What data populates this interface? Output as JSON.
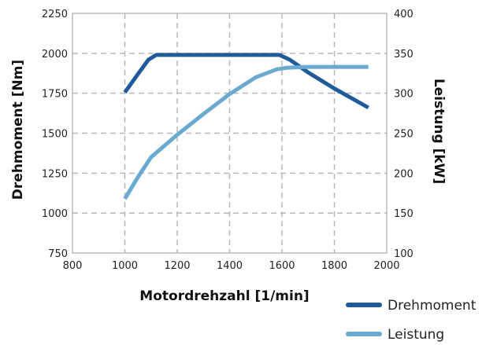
{
  "chart_data": {
    "type": "line",
    "xlabel": "Motordrehzahl [1/min]",
    "ylabel": "Drehmoment [Nm]",
    "y2label": "Leistung [kW]",
    "xlim": [
      800,
      2000
    ],
    "ylim": [
      750,
      2250
    ],
    "y2lim": [
      100,
      400
    ],
    "x_ticks": [
      800,
      1000,
      1200,
      1400,
      1600,
      1800,
      2000
    ],
    "y_ticks": [
      750,
      1000,
      1250,
      1500,
      1750,
      2000,
      2250
    ],
    "y2_ticks": [
      100,
      150,
      200,
      250,
      300,
      350,
      400
    ],
    "grid": true,
    "legend_position": "bottom-right",
    "series": [
      {
        "name": "Drehmoment",
        "axis": "left",
        "color": "#1f5a9a",
        "x": [
          1000,
          1050,
          1090,
          1120,
          1200,
          1400,
          1590,
          1630,
          1700,
          1800,
          1930
        ],
        "y": [
          1755,
          1870,
          1960,
          1990,
          1990,
          1990,
          1990,
          1960,
          1880,
          1780,
          1660
        ]
      },
      {
        "name": "Leistung",
        "axis": "right",
        "color": "#6aaad0",
        "x": [
          1000,
          1050,
          1100,
          1200,
          1300,
          1400,
          1500,
          1580,
          1620,
          1700,
          1800,
          1930
        ],
        "y": [
          168,
          195,
          220,
          248,
          274,
          299,
          320,
          330,
          332,
          333,
          333,
          333
        ]
      }
    ]
  }
}
